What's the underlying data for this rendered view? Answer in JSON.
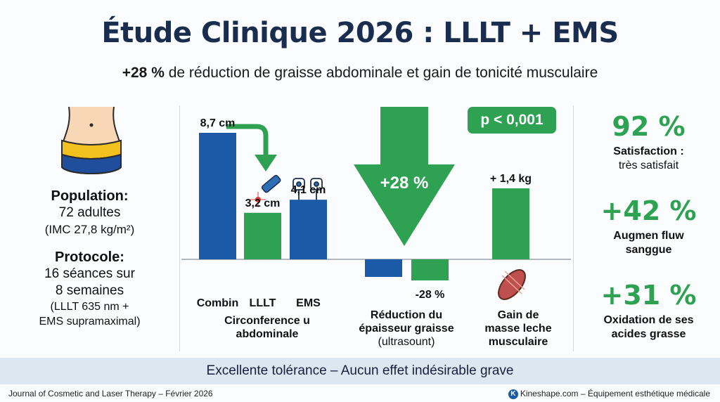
{
  "header": {
    "title": "Étude Clinique 2026 : LLLT + EMS",
    "subtitle_bold": "+28 %",
    "subtitle_rest": " de réduction de graisse abdominale et gain de tonicité musculaire"
  },
  "left_panel": {
    "population_label": "Population:",
    "population_value": "72 adultes",
    "population_note": "(IMC 27,8 kg/m²)",
    "protocol_label": "Protocole:",
    "protocol_line1": "16 séances sur",
    "protocol_line2": "8 semaines",
    "protocol_note1": "(LLLT 635 nm +",
    "protocol_note2": "EMS supramaximal)"
  },
  "right_panel": {
    "stats": [
      {
        "value": "92 %",
        "label": "Satisfaction :",
        "sublabel": "très satisfait"
      },
      {
        "value": "+42 %",
        "label": "Augmen fluw",
        "sublabel": "sanggue"
      },
      {
        "value": "+31 %",
        "label": "Oxidation de ses",
        "sublabel": "acides grasse"
      }
    ]
  },
  "p_value": "p < 0,001",
  "colors": {
    "blue": "#1b5aa6",
    "green": "#2ea152",
    "navy": "#1b2d4f"
  },
  "chart_data": [
    {
      "type": "bar",
      "categories": [
        "Combin",
        "LLLT",
        "EMS"
      ],
      "values": [
        8.7,
        3.2,
        4.1
      ],
      "value_labels": [
        "8,7 cm",
        "3,2 cm",
        "4,1 cm"
      ],
      "bar_colors": [
        "#1b5aa6",
        "#2ea152",
        "#1b5aa6"
      ],
      "xlabel_line1": "Circonference u",
      "xlabel_line2": "abdominale"
    },
    {
      "type": "bar",
      "categories": [
        "",
        ""
      ],
      "values": [
        -1.0,
        -1.2
      ],
      "value_labels": [
        "",
        "-28 %"
      ],
      "bar_colors": [
        "#1b5aa6",
        "#2ea152"
      ],
      "arrow_label": "+28 %",
      "xlabel_line1": "Réduction du",
      "xlabel_line2": "épaisseur graisse",
      "xlabel_line3": "(ultrasount)"
    },
    {
      "type": "bar",
      "categories": [
        ""
      ],
      "values": [
        1.4
      ],
      "value_labels": [
        "+ 1,4 kg"
      ],
      "bar_colors": [
        "#2ea152"
      ],
      "xlabel_line1": "Gain de",
      "xlabel_line2": "masse leche",
      "xlabel_line3": "musculaire"
    }
  ],
  "banner": "Excellente tolérance – Aucun effet indésirable grave",
  "footer": {
    "left": "Journal of Cosmetic and Laser Therapy – Février 2026",
    "logo_letter": "K",
    "right": "Kineshape.com – Équipement esthétique médicale"
  }
}
